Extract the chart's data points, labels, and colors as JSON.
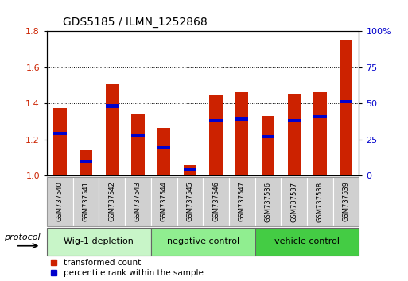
{
  "title": "GDS5185 / ILMN_1252868",
  "samples": [
    "GSM737540",
    "GSM737541",
    "GSM737542",
    "GSM737543",
    "GSM737544",
    "GSM737545",
    "GSM737546",
    "GSM737547",
    "GSM737536",
    "GSM737537",
    "GSM737538",
    "GSM737539"
  ],
  "red_values": [
    1.375,
    1.14,
    1.505,
    1.345,
    1.265,
    1.06,
    1.445,
    1.46,
    1.33,
    1.45,
    1.46,
    1.75
  ],
  "blue_values": [
    1.235,
    1.08,
    1.385,
    1.22,
    1.155,
    1.03,
    1.305,
    1.315,
    1.215,
    1.305,
    1.325,
    1.41
  ],
  "ylim": [
    1.0,
    1.8
  ],
  "y_left_ticks": [
    1.0,
    1.2,
    1.4,
    1.6,
    1.8
  ],
  "y_right_ticks": [
    0,
    25,
    50,
    75,
    100
  ],
  "groups": [
    {
      "label": "Wig-1 depletion",
      "start": 0,
      "end": 4,
      "color": "#c8f5c8"
    },
    {
      "label": "negative control",
      "start": 4,
      "end": 8,
      "color": "#90ee90"
    },
    {
      "label": "vehicle control",
      "start": 8,
      "end": 12,
      "color": "#44cc44"
    }
  ],
  "bar_color": "#cc2200",
  "blue_color": "#0000cc",
  "bar_width": 0.5,
  "bg_plot": "#ffffff",
  "tick_label_color_left": "#cc2200",
  "tick_label_color_right": "#0000cc",
  "legend_red_label": "transformed count",
  "legend_blue_label": "percentile rank within the sample",
  "protocol_label": "protocol",
  "xlabel_bg": "#d0d0d0",
  "group_border_color": "#888888"
}
